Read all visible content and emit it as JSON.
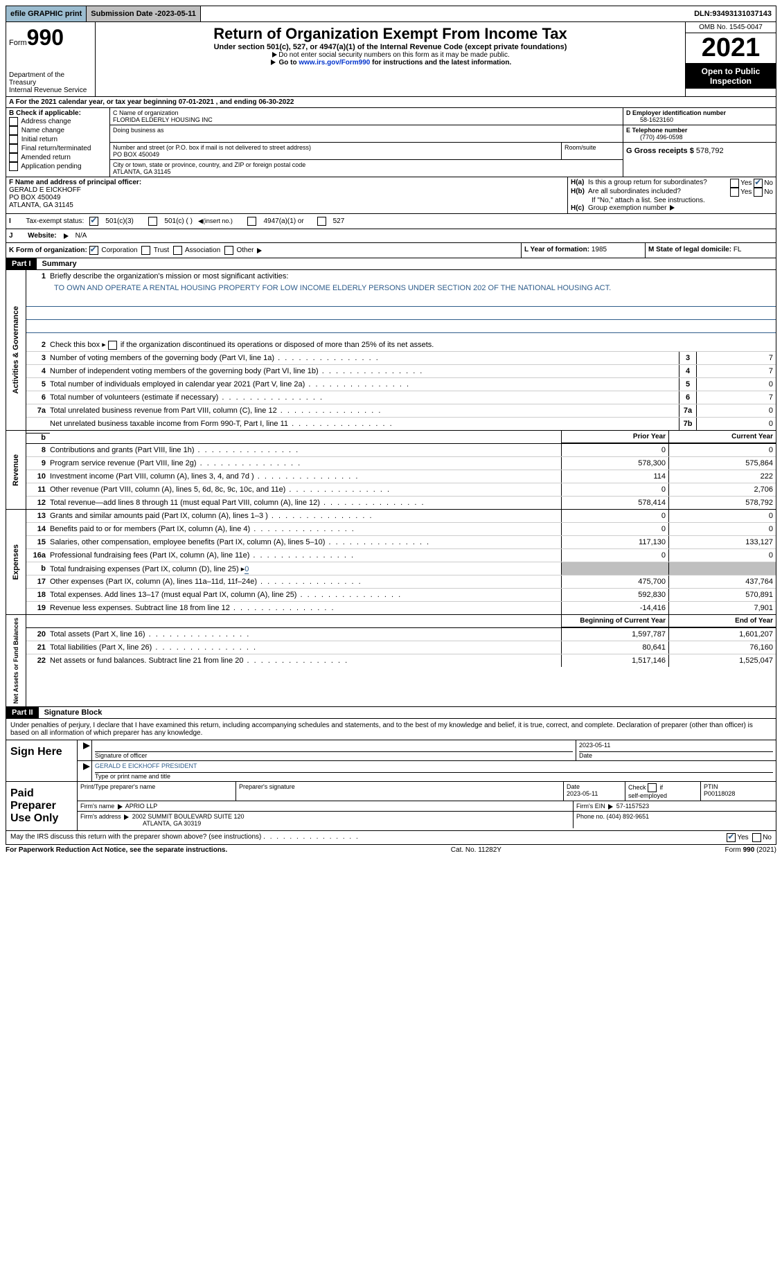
{
  "topbar": {
    "efile": "efile GRAPHIC print",
    "submission_label": "Submission Date - ",
    "submission_date": "2023-05-11",
    "dln_label": "DLN: ",
    "dln": "93493131037143"
  },
  "header": {
    "form_prefix": "Form",
    "form_number": "990",
    "title": "Return of Organization Exempt From Income Tax",
    "subtitle": "Under section 501(c), 527, or 4947(a)(1) of the Internal Revenue Code (except private foundations)",
    "note1": "Do not enter social security numbers on this form as it may be made public.",
    "note2_prefix": "Go to ",
    "note2_link": "www.irs.gov/Form990",
    "note2_suffix": " for instructions and the latest information.",
    "omb": "OMB No. 1545-0047",
    "year": "2021",
    "otp": "Open to Public Inspection",
    "dept": "Department of the Treasury",
    "irs": "Internal Revenue Service"
  },
  "section_a": {
    "text": "For the 2021 calendar year, or tax year beginning ",
    "begin": "07-01-2021",
    "mid": "   , and ending ",
    "end": "06-30-2022"
  },
  "section_b": {
    "label": "B Check if applicable:",
    "address_change": "Address change",
    "name_change": "Name change",
    "initial_return": "Initial return",
    "final_return": "Final return/terminated",
    "amended_return": "Amended return",
    "application_pending": "Application pending"
  },
  "section_c": {
    "name_label": "C Name of organization",
    "name": "FLORIDA ELDERLY HOUSING INC",
    "dba_label": "Doing business as",
    "dba": "",
    "street_label": "Number and street (or P.O. box if mail is not delivered to street address)",
    "room_label": "Room/suite",
    "street": "PO BOX 450049",
    "city_label": "City or town, state or province, country, and ZIP or foreign postal code",
    "city": "ATLANTA, GA  31145"
  },
  "section_d": {
    "label": "D Employer identification number",
    "value": "58-1623160"
  },
  "section_e": {
    "label": "E Telephone number",
    "value": "(770) 496-0598"
  },
  "section_g": {
    "label": "G Gross receipts $ ",
    "value": "578,792"
  },
  "section_f": {
    "label": "F  Name and address of principal officer:",
    "name": "GERALD E EICKHOFF",
    "street": "PO BOX 450049",
    "city": "ATLANTA, GA   31145"
  },
  "section_h": {
    "ha": "Is this a group return for subordinates?",
    "hb": "Are all subordinates included?",
    "hb_note": "If \"No,\" attach a list. See instructions.",
    "hc": "Group exemption number",
    "yes": "Yes",
    "no": "No"
  },
  "section_i": {
    "label": "Tax-exempt status:",
    "opt1": "501(c)(3)",
    "opt2": "501(c) (  )",
    "opt2_note": "(insert no.)",
    "opt3": "4947(a)(1) or",
    "opt4": "527"
  },
  "section_j": {
    "label": "Website:",
    "value": "N/A"
  },
  "section_k": {
    "label": "K Form of organization:",
    "corp": "Corporation",
    "trust": "Trust",
    "assoc": "Association",
    "other": "Other"
  },
  "section_l": {
    "label": "L Year of formation: ",
    "value": "1985"
  },
  "section_m": {
    "label": "M State of legal domicile: ",
    "value": "FL"
  },
  "part1": {
    "header": "Part I",
    "title": "Summary",
    "line1_label": "Briefly describe the organization's mission or most significant activities:",
    "mission": "TO OWN AND OPERATE A RENTAL HOUSING PROPERTY FOR LOW INCOME ELDERLY PERSONS UNDER SECTION 202 OF THE NATIONAL HOUSING ACT.",
    "line2": "Check this box ▸      if the organization discontinued its operations or disposed of more than 25% of its net assets.",
    "prior_year": "Prior Year",
    "current_year": "Current Year",
    "beginning": "Beginning of Current Year",
    "end_of_year": "End of Year",
    "sections": {
      "activities": "Activities & Governance",
      "revenue": "Revenue",
      "expenses": "Expenses",
      "netassets": "Net Assets or Fund Balances"
    },
    "lines_simple": [
      {
        "num": "3",
        "text": "Number of voting members of the governing body (Part VI, line 1a)",
        "box": "3",
        "val": "7"
      },
      {
        "num": "4",
        "text": "Number of independent voting members of the governing body (Part VI, line 1b)",
        "box": "4",
        "val": "7"
      },
      {
        "num": "5",
        "text": "Total number of individuals employed in calendar year 2021 (Part V, line 2a)",
        "box": "5",
        "val": "0"
      },
      {
        "num": "6",
        "text": "Total number of volunteers (estimate if necessary)",
        "box": "6",
        "val": "7"
      },
      {
        "num": "7a",
        "text": "Total unrelated business revenue from Part VIII, column (C), line 12",
        "box": "7a",
        "val": "0"
      },
      {
        "num": "",
        "text": "Net unrelated business taxable income from Form 990-T, Part I, line 11",
        "box": "7b",
        "val": "0"
      }
    ],
    "lines_revenue": [
      {
        "num": "8",
        "text": "Contributions and grants (Part VIII, line 1h)",
        "py": "0",
        "cy": "0"
      },
      {
        "num": "9",
        "text": "Program service revenue (Part VIII, line 2g)",
        "py": "578,300",
        "cy": "575,864"
      },
      {
        "num": "10",
        "text": "Investment income (Part VIII, column (A), lines 3, 4, and 7d )",
        "py": "114",
        "cy": "222"
      },
      {
        "num": "11",
        "text": "Other revenue (Part VIII, column (A), lines 5, 6d, 8c, 9c, 10c, and 11e)",
        "py": "0",
        "cy": "2,706"
      },
      {
        "num": "12",
        "text": "Total revenue—add lines 8 through 11 (must equal Part VIII, column (A), line 12)",
        "py": "578,414",
        "cy": "578,792"
      }
    ],
    "lines_expenses": [
      {
        "num": "13",
        "text": "Grants and similar amounts paid (Part IX, column (A), lines 1–3 )",
        "py": "0",
        "cy": "0"
      },
      {
        "num": "14",
        "text": "Benefits paid to or for members (Part IX, column (A), line 4)",
        "py": "0",
        "cy": "0"
      },
      {
        "num": "15",
        "text": "Salaries, other compensation, employee benefits (Part IX, column (A), lines 5–10)",
        "py": "117,130",
        "cy": "133,127"
      },
      {
        "num": "16a",
        "text": "Professional fundraising fees (Part IX, column (A), line 11e)",
        "py": "0",
        "cy": "0"
      },
      {
        "num": "b",
        "text": "Total fundraising expenses (Part IX, column (D), line 25) ▸",
        "special": "0",
        "gray": true
      },
      {
        "num": "17",
        "text": "Other expenses (Part IX, column (A), lines 11a–11d, 11f–24e)",
        "py": "475,700",
        "cy": "437,764"
      },
      {
        "num": "18",
        "text": "Total expenses. Add lines 13–17 (must equal Part IX, column (A), line 25)",
        "py": "592,830",
        "cy": "570,891"
      },
      {
        "num": "19",
        "text": "Revenue less expenses. Subtract line 18 from line 12",
        "py": "-14,416",
        "cy": "7,901"
      }
    ],
    "lines_netassets": [
      {
        "num": "20",
        "text": "Total assets (Part X, line 16)",
        "py": "1,597,787",
        "cy": "1,601,207"
      },
      {
        "num": "21",
        "text": "Total liabilities (Part X, line 26)",
        "py": "80,641",
        "cy": "76,160"
      },
      {
        "num": "22",
        "text": "Net assets or fund balances. Subtract line 21 from line 20",
        "py": "1,517,146",
        "cy": "1,525,047"
      }
    ]
  },
  "part2": {
    "header": "Part II",
    "title": "Signature Block",
    "declaration": "Under penalties of perjury, I declare that I have examined this return, including accompanying schedules and statements, and to the best of my knowledge and belief, it is true, correct, and complete. Declaration of preparer (other than officer) is based on all information of which preparer has any knowledge.",
    "sign_here": "Sign Here",
    "sig_officer": "Signature of officer",
    "sig_date": "2023-05-11",
    "date_label": "Date",
    "officer_name": "GERALD E EICKHOFF  PRESIDENT",
    "type_name": "Type or print name and title",
    "paid_preparer": "Paid Preparer Use Only",
    "print_name_label": "Print/Type preparer's name",
    "prep_sig_label": "Preparer's signature",
    "prep_date": "2023-05-11",
    "check_if": "Check       if self-employed",
    "ptin_label": "PTIN",
    "ptin": "P00118028",
    "firm_name_label": "Firm's name    ",
    "firm_name": "APRIO LLP",
    "firm_ein_label": "Firm's EIN ",
    "firm_ein": "57-1157523",
    "firm_addr_label": "Firm's address ",
    "firm_addr1": "2002 SUMMIT BOULEVARD SUITE 120",
    "firm_addr2": "ATLANTA, GA  30319",
    "phone_label": "Phone no. ",
    "phone": "(404) 892-9651",
    "may_irs": "May the IRS discuss this return with the preparer shown above? (see instructions)"
  },
  "footer": {
    "left": "For Paperwork Reduction Act Notice, see the separate instructions.",
    "mid": "Cat. No. 11282Y",
    "right": "Form 990 (2021)"
  }
}
